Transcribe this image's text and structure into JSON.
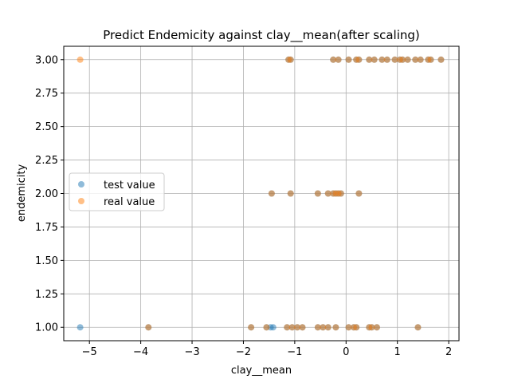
{
  "chart_data": {
    "type": "scatter",
    "title": "Predict Endemicity against clay__mean(after scaling)",
    "xlabel": "clay__mean",
    "ylabel": "endemicity",
    "xlim": [
      -5.5,
      2.2
    ],
    "ylim": [
      0.9,
      3.1
    ],
    "xticks": [
      -5,
      -4,
      -3,
      -2,
      -1,
      0,
      1,
      2
    ],
    "xtick_labels": [
      "−5",
      "−4",
      "−3",
      "−2",
      "−1",
      "0",
      "1",
      "2"
    ],
    "yticks": [
      1.0,
      1.25,
      1.5,
      1.75,
      2.0,
      2.25,
      2.5,
      2.75,
      3.0
    ],
    "ytick_labels": [
      "1.00",
      "1.25",
      "1.50",
      "1.75",
      "2.00",
      "2.25",
      "2.50",
      "2.75",
      "3.00"
    ],
    "grid": true,
    "legend": "center-left",
    "series": [
      {
        "name": "test value",
        "color": "#1f77b4",
        "alpha": 0.5,
        "x": [
          -5.18,
          -3.85,
          -1.85,
          -1.55,
          -1.47,
          -1.42,
          -1.15,
          -1.05,
          -0.95,
          -0.85,
          -0.55,
          -0.45,
          -0.35,
          -0.2,
          0.05,
          0.15,
          0.2,
          0.45,
          0.5,
          0.6,
          1.4,
          -1.45,
          -1.08,
          -0.55,
          -0.35,
          -0.25,
          -0.2,
          -0.15,
          -0.1,
          0.25,
          -1.12,
          -1.08,
          -0.25,
          -0.15,
          0.05,
          0.2,
          0.25,
          0.45,
          0.55,
          0.7,
          0.8,
          0.95,
          1.05,
          1.1,
          1.2,
          1.35,
          1.45,
          1.6,
          1.65,
          1.85
        ],
        "y": [
          1,
          1,
          1,
          1,
          1,
          1,
          1,
          1,
          1,
          1,
          1,
          1,
          1,
          1,
          1,
          1,
          1,
          1,
          1,
          1,
          1,
          2,
          2,
          2,
          2,
          2,
          2,
          2,
          2,
          2,
          3,
          3,
          3,
          3,
          3,
          3,
          3,
          3,
          3,
          3,
          3,
          3,
          3,
          3,
          3,
          3,
          3,
          3,
          3,
          3
        ]
      },
      {
        "name": "real value",
        "color": "#ff7f0e",
        "alpha": 0.5,
        "x": [
          -3.85,
          -1.85,
          -1.55,
          -1.15,
          -1.05,
          -0.95,
          -0.85,
          -0.55,
          -0.45,
          -0.35,
          -0.2,
          0.05,
          0.15,
          0.2,
          0.45,
          0.5,
          0.6,
          1.4,
          -1.45,
          -1.08,
          -0.55,
          -0.35,
          -0.25,
          -0.2,
          -0.15,
          -0.1,
          0.25,
          -5.18,
          -1.12,
          -1.08,
          -0.25,
          -0.15,
          0.05,
          0.2,
          0.25,
          0.45,
          0.55,
          0.7,
          0.8,
          0.95,
          1.05,
          1.1,
          1.2,
          1.35,
          1.45,
          1.6,
          1.65,
          1.85
        ],
        "y": [
          1,
          1,
          1,
          1,
          1,
          1,
          1,
          1,
          1,
          1,
          1,
          1,
          1,
          1,
          1,
          1,
          1,
          1,
          2,
          2,
          2,
          2,
          2,
          2,
          2,
          2,
          2,
          3,
          3,
          3,
          3,
          3,
          3,
          3,
          3,
          3,
          3,
          3,
          3,
          3,
          3,
          3,
          3,
          3,
          3,
          3,
          3,
          3
        ]
      }
    ]
  }
}
